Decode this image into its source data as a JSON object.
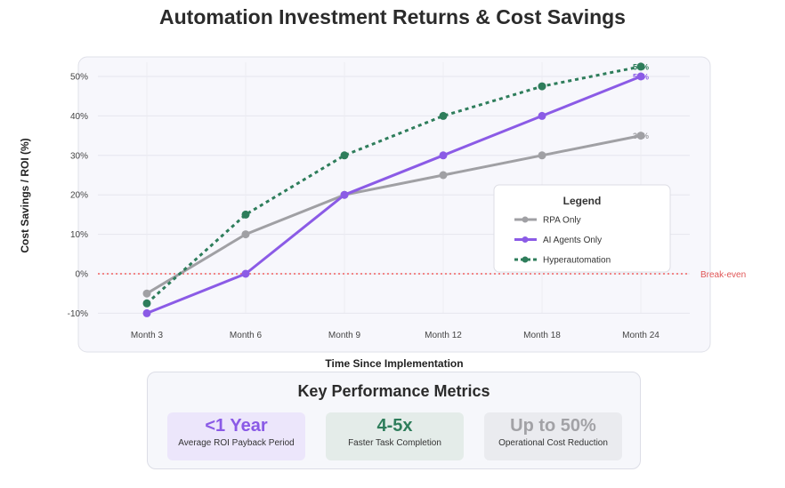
{
  "title": "Automation Investment Returns & Cost Savings",
  "chart_data": {
    "type": "line",
    "categories": [
      "Month 3",
      "Month 6",
      "Month 9",
      "Month 12",
      "Month 18",
      "Month 24"
    ],
    "series": [
      {
        "name": "RPA Only",
        "values": [
          -5,
          10,
          20,
          25,
          30,
          35
        ],
        "color": "#a0a0a4",
        "style": "solid",
        "end_label": "35%"
      },
      {
        "name": "AI Agents Only",
        "values": [
          -10,
          0,
          20,
          30,
          40,
          50
        ],
        "color": "#8b5be6",
        "style": "solid",
        "end_label": "50%"
      },
      {
        "name": "Hyperautomation",
        "values": [
          -7.5,
          15,
          30,
          40,
          47.5,
          52.5
        ],
        "color": "#2e7d5b",
        "style": "dotted",
        "end_label": "53%"
      }
    ],
    "xlabel": "Time Since Implementation",
    "ylabel": "Cost Savings / ROI (%)",
    "ylim": [
      -12,
      54
    ],
    "yticks": [
      -10,
      0,
      10,
      20,
      30,
      40,
      50
    ],
    "ytick_labels": [
      "-10%",
      "0%",
      "10%",
      "20%",
      "30%",
      "40%",
      "50%"
    ],
    "grid": true,
    "legend": {
      "title": "Legend",
      "placement": "right"
    },
    "reference_line": {
      "value": 0,
      "label": "Break-even",
      "color": "#f06060"
    }
  },
  "metrics": {
    "title": "Key Performance Metrics",
    "cards": [
      {
        "value": "<1 Year",
        "label": "Average ROI Payback Period"
      },
      {
        "value": "4-5x",
        "label": "Faster Task Completion"
      },
      {
        "value": "Up to 50%",
        "label": "Operational Cost Reduction"
      }
    ]
  }
}
